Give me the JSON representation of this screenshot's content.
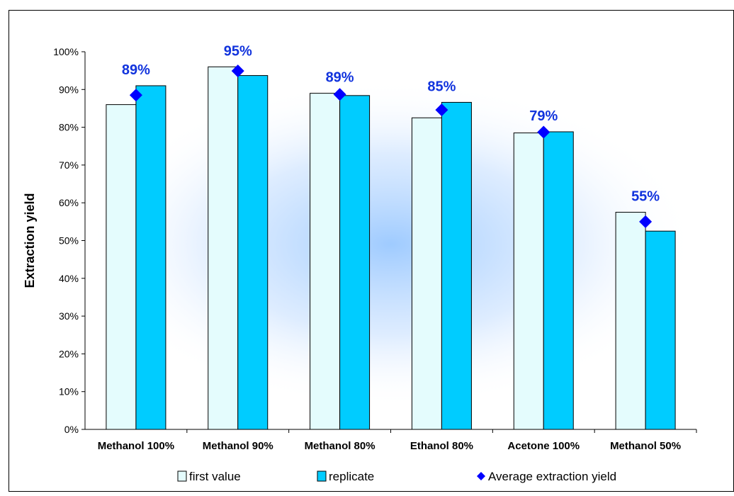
{
  "chart_data": {
    "type": "bar",
    "title": "",
    "xlabel": "",
    "ylabel": "Extraction yield",
    "ylim": [
      0,
      100
    ],
    "yticks": [
      "0%",
      "10%",
      "20%",
      "30%",
      "40%",
      "50%",
      "60%",
      "70%",
      "80%",
      "90%",
      "100%"
    ],
    "categories": [
      "Methanol 100%",
      "Methanol 90%",
      "Methanol 80%",
      "Ethanol 80%",
      "Acetone 100%",
      "Methanol 50%"
    ],
    "series": [
      {
        "name": "first value",
        "kind": "bar",
        "color": "#E4FCFD",
        "values": [
          86,
          96,
          89,
          82.5,
          78.5,
          57.5
        ]
      },
      {
        "name": "replicate",
        "kind": "bar",
        "color": "#00CCFF",
        "values": [
          91,
          93.7,
          88.4,
          86.6,
          78.8,
          52.5
        ]
      },
      {
        "name": "Average extraction yield",
        "kind": "marker",
        "color": "#0000FF",
        "values": [
          88.5,
          94.9,
          88.7,
          84.6,
          78.7,
          55
        ]
      }
    ],
    "data_labels": [
      "89%",
      "95%",
      "89%",
      "85%",
      "79%",
      "55%"
    ],
    "grid": false,
    "legend_position": "bottom",
    "label_color": "#1133DD",
    "background_glow": "#9FCBFF"
  }
}
